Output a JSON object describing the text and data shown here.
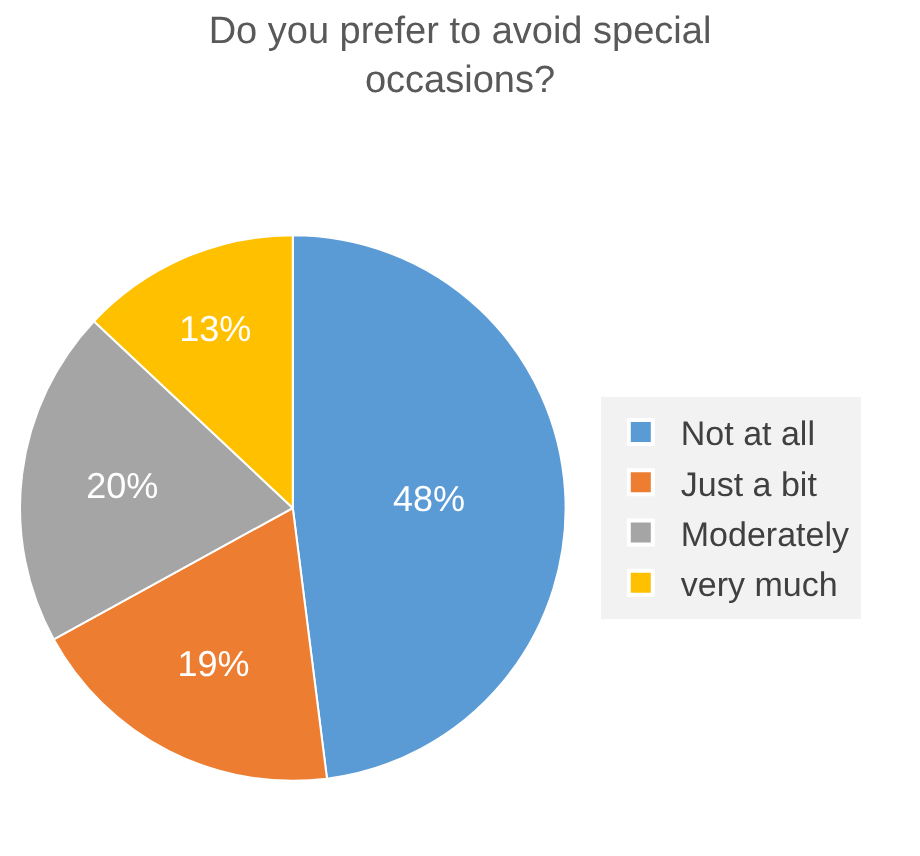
{
  "chart_data": {
    "type": "pie",
    "title": "Do you prefer to avoid special occasions?",
    "categories": [
      "Not at all",
      "Just a bit",
      "Moderately",
      "very much"
    ],
    "values": [
      48,
      19,
      20,
      13
    ],
    "value_labels": [
      "48%",
      "19%",
      "20%",
      "13%"
    ],
    "colors": [
      "#5b9bd5",
      "#ed7d31",
      "#a5a5a5",
      "#ffc000"
    ],
    "legend": "right"
  }
}
